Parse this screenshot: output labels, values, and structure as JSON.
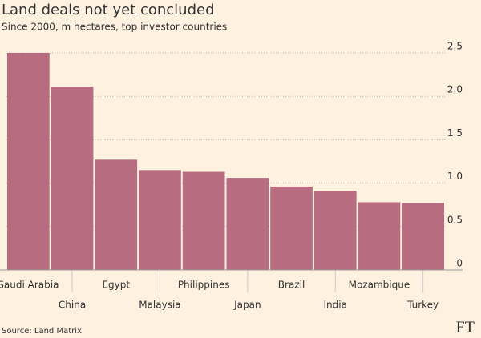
{
  "chart_data": {
    "type": "bar",
    "title": "Land deals not yet concluded",
    "subtitle": "Since 2000, m hectares, top investor countries",
    "source": "Source: Land Matrix",
    "logo": "FT",
    "categories": [
      "Saudi Arabia",
      "China",
      "Egypt",
      "Malaysia",
      "Philippines",
      "Japan",
      "Brazil",
      "India",
      "Mozambique",
      "Turkey"
    ],
    "values": [
      2.5,
      2.11,
      1.27,
      1.15,
      1.13,
      1.06,
      0.96,
      0.91,
      0.78,
      0.77
    ],
    "color": "#b86c80",
    "ylim": [
      0,
      2.5
    ],
    "yticks": [
      0,
      0.5,
      {
        "value": 1,
        "label": "1.0"
      },
      1.5,
      {
        "value": 2,
        "label": "2.0"
      },
      2.5
    ],
    "grid": true
  }
}
